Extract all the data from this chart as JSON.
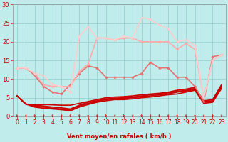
{
  "xlabel": "Vent moyen/en rafales ( km/h )",
  "bg_color": "#c0ecec",
  "grid_color": "#90cccc",
  "xlim": [
    -0.5,
    23.5
  ],
  "ylim": [
    0,
    30
  ],
  "yticks": [
    0,
    5,
    10,
    15,
    20,
    25,
    30
  ],
  "xticks": [
    0,
    1,
    2,
    3,
    4,
    5,
    6,
    7,
    8,
    9,
    10,
    11,
    12,
    13,
    14,
    15,
    16,
    17,
    18,
    19,
    20,
    21,
    22,
    23
  ],
  "series": [
    {
      "x": [
        0,
        1,
        2,
        3,
        4,
        5,
        6,
        7,
        8,
        9,
        10,
        11,
        12,
        13,
        14,
        15,
        16,
        17,
        18,
        19,
        20,
        21,
        22,
        23
      ],
      "y": [
        5.5,
        3.3,
        3.2,
        3.2,
        3.1,
        3.0,
        3.0,
        3.5,
        4.0,
        4.5,
        5.0,
        5.2,
        5.3,
        5.5,
        5.8,
        6.0,
        6.2,
        6.5,
        7.0,
        7.3,
        7.8,
        4.2,
        4.5,
        8.5
      ],
      "color": "#cc0000",
      "lw": 1.2,
      "marker": null,
      "zorder": 4
    },
    {
      "x": [
        0,
        1,
        2,
        3,
        4,
        5,
        6,
        7,
        8,
        9,
        10,
        11,
        12,
        13,
        14,
        15,
        16,
        17,
        18,
        19,
        20,
        21,
        22,
        23
      ],
      "y": [
        5.5,
        3.3,
        3.0,
        2.8,
        2.5,
        2.3,
        2.0,
        3.0,
        3.8,
        4.2,
        4.7,
        4.9,
        5.0,
        5.2,
        5.5,
        5.8,
        6.0,
        6.3,
        6.7,
        7.0,
        7.5,
        4.0,
        4.2,
        8.2
      ],
      "color": "#cc0000",
      "lw": 1.2,
      "marker": null,
      "zorder": 4
    },
    {
      "x": [
        0,
        1,
        2,
        3,
        4,
        5,
        6,
        7,
        8,
        9,
        10,
        11,
        12,
        13,
        14,
        15,
        16,
        17,
        18,
        19,
        20,
        21,
        22,
        23
      ],
      "y": [
        5.5,
        3.3,
        2.8,
        2.5,
        2.2,
        2.0,
        1.8,
        2.8,
        3.5,
        4.0,
        4.5,
        4.7,
        4.8,
        5.0,
        5.3,
        5.5,
        5.8,
        6.0,
        6.5,
        6.8,
        7.2,
        3.8,
        4.0,
        7.8
      ],
      "color": "#cc0000",
      "lw": 1.2,
      "marker": null,
      "zorder": 4
    },
    {
      "x": [
        0,
        1,
        2,
        3,
        4,
        5,
        6,
        7,
        8,
        9,
        10,
        11,
        12,
        13,
        14,
        15,
        16,
        17,
        18,
        19,
        20,
        21,
        22,
        23
      ],
      "y": [
        5.5,
        3.3,
        2.5,
        2.2,
        2.0,
        1.8,
        1.5,
        2.5,
        3.2,
        3.8,
        4.2,
        4.5,
        4.5,
        4.7,
        5.0,
        5.2,
        5.5,
        5.8,
        6.0,
        6.5,
        7.0,
        3.5,
        3.8,
        7.5
      ],
      "color": "#cc0000",
      "lw": 1.2,
      "marker": null,
      "zorder": 4
    },
    {
      "x": [
        0,
        1,
        2,
        3,
        4,
        5,
        6,
        7,
        8,
        9,
        10,
        11,
        12,
        13,
        14,
        15,
        16,
        17,
        18,
        19,
        20,
        21,
        22,
        23
      ],
      "y": [
        13.0,
        13.0,
        11.0,
        8.0,
        6.5,
        6.0,
        8.5,
        11.5,
        13.5,
        13.0,
        10.5,
        10.5,
        10.5,
        10.5,
        11.5,
        14.5,
        13.0,
        13.0,
        10.5,
        10.5,
        8.0,
        4.0,
        16.0,
        16.5
      ],
      "color": "#e87070",
      "lw": 1.2,
      "marker": "D",
      "markersize": 1.8,
      "zorder": 5
    },
    {
      "x": [
        0,
        1,
        2,
        3,
        4,
        5,
        6,
        7,
        8,
        9,
        10,
        11,
        12,
        13,
        14,
        15,
        16,
        17,
        18,
        19,
        20,
        21,
        22,
        23
      ],
      "y": [
        13.0,
        13.0,
        11.5,
        8.5,
        8.0,
        8.0,
        8.0,
        12.0,
        14.0,
        21.0,
        21.0,
        20.5,
        21.0,
        21.0,
        20.0,
        20.0,
        20.0,
        20.0,
        18.0,
        19.5,
        18.0,
        5.0,
        15.0,
        16.5
      ],
      "color": "#ffaaaa",
      "lw": 1.2,
      "marker": "D",
      "markersize": 1.8,
      "zorder": 5
    },
    {
      "x": [
        0,
        1,
        2,
        3,
        4,
        5,
        6,
        7,
        8,
        9,
        10,
        11,
        12,
        13,
        14,
        15,
        16,
        17,
        18,
        19,
        20,
        21,
        22,
        23
      ],
      "y": [
        13.0,
        13.0,
        11.5,
        11.0,
        8.5,
        8.0,
        6.5,
        21.5,
        24.0,
        21.0,
        21.0,
        20.5,
        21.5,
        21.0,
        26.5,
        26.0,
        24.5,
        23.5,
        20.0,
        20.5,
        19.0,
        5.0,
        15.0,
        16.5
      ],
      "color": "#ffcccc",
      "lw": 1.2,
      "marker": "D",
      "markersize": 1.8,
      "zorder": 5
    }
  ],
  "wind_arrows_x": [
    0,
    1,
    2,
    3,
    4,
    5,
    6,
    7,
    8,
    9,
    10,
    11,
    12,
    13,
    14,
    15,
    16,
    17,
    18,
    19,
    20,
    21,
    22,
    23
  ],
  "arrow_color": "#cc0000"
}
